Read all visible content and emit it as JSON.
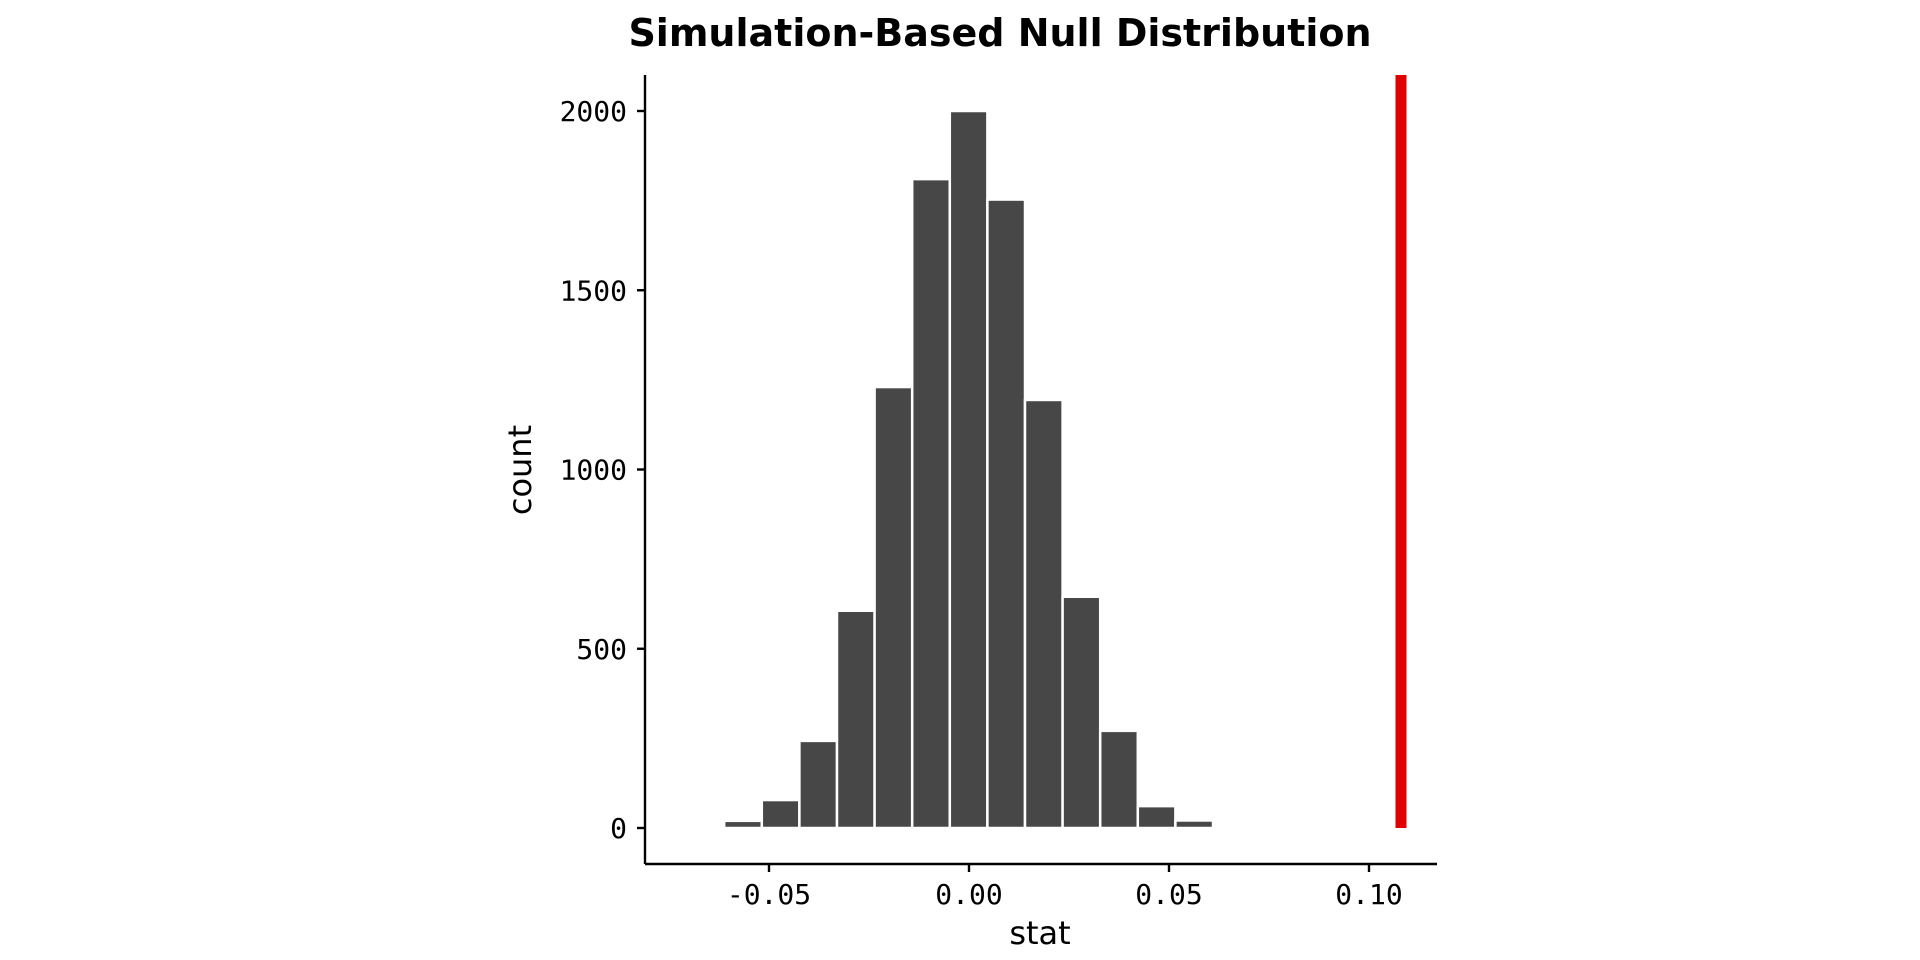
{
  "chart_data": {
    "type": "bar",
    "title": "Simulation-Based Null Distribution",
    "xlabel": "stat",
    "ylabel": "count",
    "xlim": [
      -0.081,
      0.117
    ],
    "ylim": [
      0,
      2000
    ],
    "x_ticks": [
      -0.05,
      0.0,
      0.05,
      0.1
    ],
    "x_tick_labels": [
      "-0.05",
      "0.00",
      "0.05",
      "0.10"
    ],
    "y_ticks": [
      0,
      500,
      1000,
      1500,
      2000
    ],
    "y_tick_labels": [
      "0",
      "500",
      "1000",
      "1500",
      "2000"
    ],
    "bin_width": 0.0094,
    "bins": [
      {
        "x": -0.0659,
        "count": 2
      },
      {
        "x": -0.0565,
        "count": 20
      },
      {
        "x": -0.0471,
        "count": 78
      },
      {
        "x": -0.0377,
        "count": 243
      },
      {
        "x": -0.0283,
        "count": 606
      },
      {
        "x": -0.0189,
        "count": 1230
      },
      {
        "x": -0.0095,
        "count": 1810
      },
      {
        "x": -0.0001,
        "count": 2000
      },
      {
        "x": 0.0093,
        "count": 1753
      },
      {
        "x": 0.0187,
        "count": 1194
      },
      {
        "x": 0.0281,
        "count": 645
      },
      {
        "x": 0.0375,
        "count": 271
      },
      {
        "x": 0.0469,
        "count": 61
      },
      {
        "x": 0.0563,
        "count": 21
      }
    ],
    "observed_stat": 0.108,
    "grid": false,
    "colors": {
      "bar_fill": "#474747",
      "bar_outline": "#ffffff",
      "observed_line": "#e00000",
      "axis": "#000000"
    }
  }
}
